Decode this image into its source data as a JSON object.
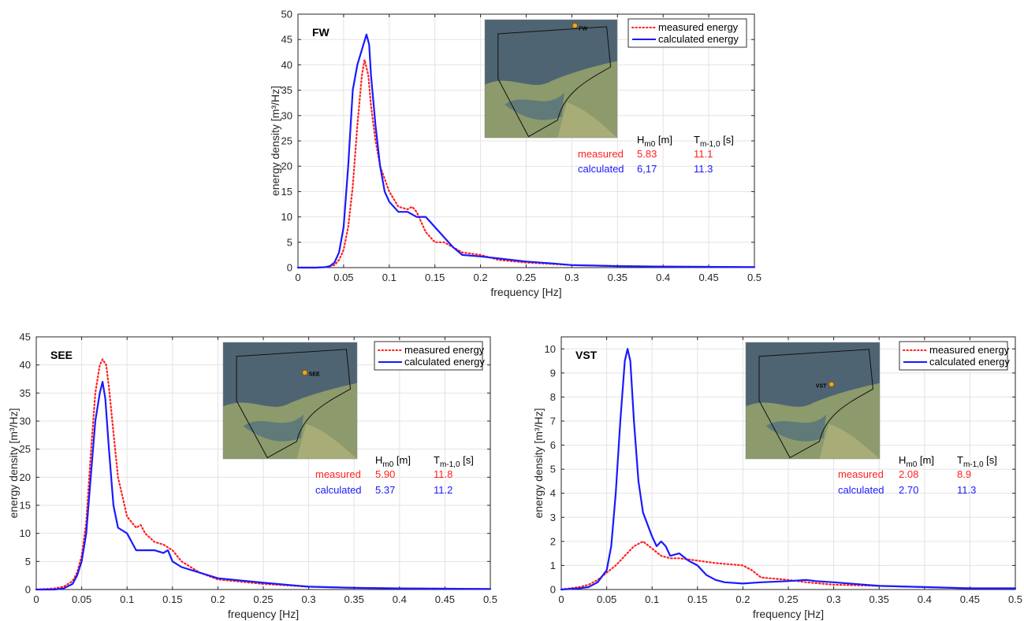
{
  "colors": {
    "measured": "#ff2020",
    "calculated": "#1a1aff",
    "grid": "#e3e3e3",
    "axis": "#262626"
  },
  "panels": [
    {
      "title": "FW",
      "xlabel": "frequency [Hz]",
      "ylabel": "energy density [m³/Hz]",
      "legend": {
        "measured": "measured energy",
        "calculated": "calculated energy"
      },
      "inset_icon": "map-inset-icon",
      "inset_label": "FW",
      "stats": {
        "h_label": "H",
        "h_sub": "m0",
        "h_unit": " [m]",
        "t_label": "T",
        "t_sub": "m-1,0",
        "t_unit": " [s]",
        "measured_name": "measured",
        "measured_h": "5.83",
        "measured_t": "11.1",
        "calculated_name": "calculated",
        "calculated_h": "6,17",
        "calculated_t": "11.3"
      },
      "chart_data": {
        "type": "line",
        "title": "FW",
        "xlabel": "frequency [Hz]",
        "ylabel": "energy density [m³/Hz]",
        "xlim": [
          0,
          0.5
        ],
        "ylim": [
          0,
          50
        ],
        "xticks": [
          "0",
          "0.05",
          "0.1",
          "0.15",
          "0.2",
          "0.25",
          "0.3",
          "0.35",
          "0.4",
          "0.45",
          "0.5"
        ],
        "yticks": [
          "0",
          "5",
          "10",
          "15",
          "20",
          "25",
          "30",
          "35",
          "40",
          "45",
          "50"
        ],
        "grid": true,
        "legend_position": "top-right",
        "series": [
          {
            "name": "measured energy",
            "style": "dotted",
            "x": [
              0,
              0.02,
              0.03,
              0.04,
              0.045,
              0.05,
              0.055,
              0.06,
              0.065,
              0.07,
              0.073,
              0.077,
              0.08,
              0.085,
              0.09,
              0.1,
              0.11,
              0.12,
              0.125,
              0.13,
              0.14,
              0.15,
              0.16,
              0.17,
              0.18,
              0.2,
              0.22,
              0.25,
              0.3,
              0.35,
              0.4,
              0.5
            ],
            "y": [
              0,
              0,
              0.1,
              0.5,
              1.5,
              3.5,
              8,
              16,
              28,
              38,
              41,
              38,
              32,
              25,
              20,
              15,
              12,
              11.5,
              12,
              11,
              7,
              5,
              5,
              4,
              3,
              2.5,
              1.5,
              1,
              0.5,
              0.3,
              0.2,
              0.1
            ]
          },
          {
            "name": "calculated energy",
            "style": "solid",
            "x": [
              0,
              0.02,
              0.03,
              0.035,
              0.04,
              0.045,
              0.05,
              0.055,
              0.06,
              0.065,
              0.07,
              0.075,
              0.078,
              0.08,
              0.085,
              0.09,
              0.095,
              0.1,
              0.11,
              0.12,
              0.13,
              0.135,
              0.14,
              0.15,
              0.16,
              0.17,
              0.18,
              0.2,
              0.22,
              0.25,
              0.28,
              0.3,
              0.35,
              0.4,
              0.5
            ],
            "y": [
              0,
              0,
              0.1,
              0.3,
              1,
              3,
              8,
              20,
              35,
              40,
              43,
              46,
              44,
              38,
              28,
              20,
              15,
              13,
              11,
              11,
              10,
              10,
              10,
              8,
              6,
              4,
              2.5,
              2.2,
              1.8,
              1.2,
              0.8,
              0.5,
              0.3,
              0.2,
              0.1
            ]
          }
        ]
      }
    },
    {
      "title": "SEE",
      "xlabel": "frequency [Hz]",
      "ylabel": "energy density [m³/Hz]",
      "legend": {
        "measured": "measured energy",
        "calculated": "calculated energy"
      },
      "inset_icon": "map-inset-icon",
      "inset_label": "SEE",
      "stats": {
        "h_label": "H",
        "h_sub": "m0",
        "h_unit": " [m]",
        "t_label": "T",
        "t_sub": "m-1,0",
        "t_unit": " [s]",
        "measured_name": "measured",
        "measured_h": "5.90",
        "measured_t": "11.8",
        "calculated_name": "calculated",
        "calculated_h": "5.37",
        "calculated_t": "11.2"
      },
      "chart_data": {
        "type": "line",
        "title": "SEE",
        "xlabel": "frequency [Hz]",
        "ylabel": "energy density [m³/Hz]",
        "xlim": [
          0,
          0.5
        ],
        "ylim": [
          0,
          45
        ],
        "xticks": [
          "0",
          "0.05",
          "0.1",
          "0.15",
          "0.2",
          "0.25",
          "0.3",
          "0.35",
          "0.4",
          "0.45",
          "0.5"
        ],
        "yticks": [
          "0",
          "5",
          "10",
          "15",
          "20",
          "25",
          "30",
          "35",
          "40",
          "45"
        ],
        "grid": true,
        "legend_position": "top-right",
        "series": [
          {
            "name": "measured energy",
            "style": "dotted",
            "x": [
              0,
              0.02,
              0.03,
              0.04,
              0.045,
              0.05,
              0.055,
              0.06,
              0.065,
              0.07,
              0.073,
              0.077,
              0.08,
              0.085,
              0.09,
              0.1,
              0.11,
              0.115,
              0.12,
              0.13,
              0.14,
              0.15,
              0.16,
              0.18,
              0.2,
              0.25,
              0.3,
              0.35,
              0.4,
              0.5
            ],
            "y": [
              0,
              0.2,
              0.5,
              1.5,
              3,
              6,
              12,
              24,
              35,
              40,
              41,
              40,
              36,
              28,
              20,
              13,
              11,
              11.5,
              10,
              8.5,
              8,
              7,
              5,
              3,
              1.8,
              1,
              0.5,
              0.3,
              0.2,
              0.1
            ]
          },
          {
            "name": "calculated energy",
            "style": "solid",
            "x": [
              0,
              0.02,
              0.03,
              0.04,
              0.045,
              0.05,
              0.055,
              0.06,
              0.065,
              0.07,
              0.073,
              0.076,
              0.08,
              0.085,
              0.09,
              0.1,
              0.11,
              0.12,
              0.13,
              0.14,
              0.145,
              0.15,
              0.16,
              0.18,
              0.2,
              0.25,
              0.3,
              0.35,
              0.4,
              0.5
            ],
            "y": [
              0,
              0,
              0.2,
              1,
              2.5,
              5,
              10,
              20,
              30,
              35,
              37,
              34,
              25,
              15,
              11,
              10,
              7,
              7,
              7,
              6.5,
              7,
              5,
              4,
              3,
              2,
              1.2,
              0.5,
              0.3,
              0.2,
              0.1
            ]
          }
        ]
      }
    },
    {
      "title": "VST",
      "xlabel": "frequency [Hz]",
      "ylabel": "energy density [m³/Hz]",
      "legend": {
        "measured": "measured energy",
        "calculated": "calculated energy"
      },
      "inset_icon": "map-inset-icon",
      "inset_label": "VST",
      "stats": {
        "h_label": "H",
        "h_sub": "m0",
        "h_unit": " [m]",
        "t_label": "T",
        "t_sub": "m-1,0",
        "t_unit": " [s]",
        "measured_name": "measured",
        "measured_h": "2.08",
        "measured_t": "8.9",
        "calculated_name": "calculated",
        "calculated_h": "2.70",
        "calculated_t": "11.3"
      },
      "chart_data": {
        "type": "line",
        "title": "VST",
        "xlabel": "frequency [Hz]",
        "ylabel": "energy density [m³/Hz]",
        "xlim": [
          0,
          0.5
        ],
        "ylim": [
          0,
          10.5
        ],
        "xticks": [
          "0",
          "0.05",
          "0.1",
          "0.15",
          "0.2",
          "0.25",
          "0.3",
          "0.35",
          "0.4",
          "0.45",
          "0.5"
        ],
        "yticks": [
          "0",
          "1",
          "2",
          "3",
          "4",
          "5",
          "6",
          "7",
          "8",
          "9",
          "10"
        ],
        "grid": true,
        "legend_position": "top-right",
        "series": [
          {
            "name": "measured energy",
            "style": "dotted",
            "x": [
              0,
              0.02,
              0.03,
              0.04,
              0.05,
              0.06,
              0.07,
              0.08,
              0.09,
              0.1,
              0.11,
              0.12,
              0.13,
              0.15,
              0.17,
              0.2,
              0.21,
              0.22,
              0.25,
              0.27,
              0.3,
              0.35,
              0.4,
              0.45,
              0.5
            ],
            "y": [
              0,
              0.1,
              0.2,
              0.4,
              0.7,
              1,
              1.4,
              1.8,
              2,
              1.7,
              1.4,
              1.3,
              1.3,
              1.2,
              1.1,
              1,
              0.8,
              0.5,
              0.4,
              0.3,
              0.2,
              0.15,
              0.1,
              0.05,
              0.05
            ]
          },
          {
            "name": "calculated energy",
            "style": "solid",
            "x": [
              0,
              0.02,
              0.03,
              0.04,
              0.05,
              0.055,
              0.06,
              0.065,
              0.07,
              0.073,
              0.076,
              0.08,
              0.085,
              0.09,
              0.1,
              0.105,
              0.11,
              0.115,
              0.12,
              0.13,
              0.14,
              0.15,
              0.16,
              0.17,
              0.18,
              0.2,
              0.22,
              0.25,
              0.27,
              0.28,
              0.3,
              0.35,
              0.4,
              0.45,
              0.5
            ],
            "y": [
              0,
              0.05,
              0.1,
              0.3,
              0.8,
              1.8,
              4,
              7,
              9.5,
              10,
              9.5,
              7,
              4.5,
              3.2,
              2.2,
              1.8,
              2,
              1.8,
              1.4,
              1.5,
              1.2,
              1,
              0.6,
              0.4,
              0.3,
              0.25,
              0.3,
              0.35,
              0.4,
              0.35,
              0.3,
              0.15,
              0.1,
              0.05,
              0.05
            ]
          }
        ]
      }
    }
  ]
}
